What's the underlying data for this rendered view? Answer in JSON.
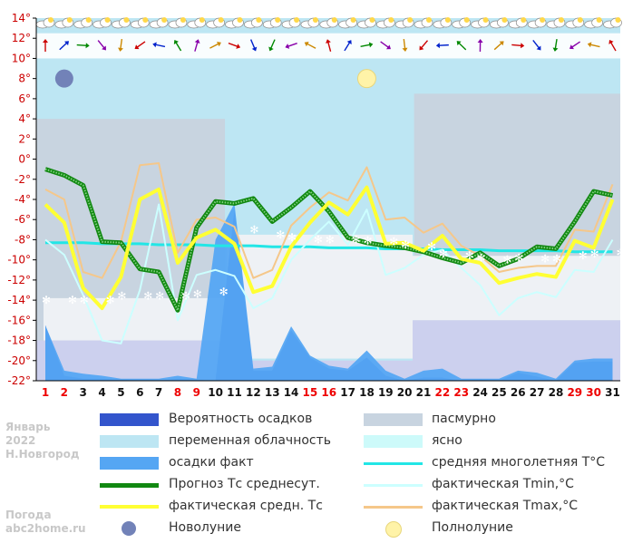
{
  "meta": {
    "month": "Январь",
    "year": "2022",
    "city": "Н.Новгород",
    "site_line1": "Погода",
    "site_line2": "abc2home.ru"
  },
  "colors": {
    "precip_prob": "#3355cc",
    "variable_cloud": "#bde6f3",
    "precip_actual": "#55a6f3",
    "forecast": "#118811",
    "actual_mean": "#ffff33",
    "overcast": "#c8d4e0",
    "clear": "#cdfafa",
    "normal": "#22e6e6",
    "tmin": "#ccffff",
    "tmax": "#f5c78a"
  },
  "legend": [
    {
      "key": "precip_prob",
      "label": "Вероятность осадков"
    },
    {
      "key": "overcast",
      "label": "пасмурно"
    },
    {
      "key": "variable_cloud",
      "label": "переменная облачность"
    },
    {
      "key": "clear",
      "label": "ясно"
    },
    {
      "key": "precip_actual",
      "label": "осадки факт"
    },
    {
      "key": "normal",
      "label": "средняя многолетняя Т°С"
    },
    {
      "key": "forecast",
      "label": "Прогноз Тс среднесут."
    },
    {
      "key": "tmin",
      "label": "фактическая Tmin,°C"
    },
    {
      "key": "actual_mean",
      "label": "фактическая средн. Тс"
    },
    {
      "key": "tmax",
      "label": "фактическая Tmax,°C"
    },
    {
      "key": "new_moon",
      "label": "Новолуние"
    },
    {
      "key": "full_moon",
      "label": "Полнолуние"
    }
  ],
  "chart_data": {
    "type": "line",
    "x": [
      1,
      2,
      3,
      4,
      5,
      6,
      7,
      8,
      9,
      10,
      11,
      12,
      13,
      14,
      15,
      16,
      17,
      18,
      19,
      20,
      21,
      22,
      23,
      24,
      25,
      26,
      27,
      28,
      29,
      30,
      31
    ],
    "x_tick_labels": [
      "1",
      "2",
      "3",
      "4",
      "5",
      "6",
      "7",
      "8",
      "9",
      "10",
      "11",
      "12",
      "13",
      "14",
      "15",
      "16",
      "17",
      "18",
      "19",
      "20",
      "21",
      "22",
      "23",
      "24",
      "25",
      "26",
      "27",
      "28",
      "29",
      "30",
      "31"
    ],
    "weekend_days": [
      1,
      2,
      8,
      9,
      15,
      16,
      22,
      23,
      29,
      30
    ],
    "y_tick_labels": [
      "14°",
      "12°",
      "10°",
      "8°",
      "6°",
      "4°",
      "2°",
      "0°",
      "-2°",
      "-4°",
      "-6°",
      "-8°",
      "-10°",
      "-12°",
      "-14°",
      "-16°",
      "-18°",
      "-20°",
      "-22°"
    ],
    "ylim": [
      -22,
      14
    ],
    "series": [
      {
        "name": "Прогноз Тс среднесут.",
        "values": [
          -1,
          -1.6,
          -2.6,
          -8.2,
          -8.3,
          -10.9,
          -11.2,
          -15,
          -6.8,
          -4.2,
          -4.4,
          -3.9,
          -6.2,
          -4.8,
          -3.2,
          -5.2,
          -7.8,
          -8.3,
          -8.6,
          -8.8,
          -9.2,
          -9.8,
          -10.3,
          -9.3,
          -10.6,
          -9.9,
          -8.7,
          -8.9,
          -6.2,
          -3.2,
          -3.6
        ]
      },
      {
        "name": "фактическая средн. Тс",
        "values": [
          -4.5,
          -6.3,
          -12.8,
          -14.8,
          -11.7,
          -4,
          -3,
          -10.3,
          -7.8,
          -7,
          -8.4,
          -13.2,
          -12.6,
          -8.7,
          -6.3,
          -4.3,
          -5.5,
          -2.8,
          -8.4,
          -8.3,
          -9.1,
          -7.6,
          -9.9,
          -10.3,
          -12.3,
          -11.8,
          -11.4,
          -11.7,
          -8.1,
          -8.8,
          -4
        ]
      },
      {
        "name": "фактическая Tmin,°C",
        "values": [
          -8,
          -9.5,
          -13.5,
          -18,
          -18.3,
          -13,
          -4.5,
          -16,
          -11.5,
          -11,
          -11.6,
          -14.8,
          -13.8,
          -10,
          -8,
          -6.2,
          -8.5,
          -5,
          -11.5,
          -10.8,
          -9.5,
          -9,
          -10.8,
          -12.5,
          -15.5,
          -13.8,
          -13.2,
          -13.7,
          -11,
          -11.2,
          -8
        ]
      },
      {
        "name": "фактическая Tmax,°C",
        "values": [
          -3,
          -4,
          -11.2,
          -11.8,
          -8.2,
          -0.6,
          -0.4,
          -9.3,
          -6,
          -5.8,
          -6.7,
          -11.8,
          -11,
          -6.6,
          -4.8,
          -3.3,
          -4.1,
          -0.8,
          -6,
          -5.8,
          -7.3,
          -6.4,
          -8.6,
          -9.6,
          -11.2,
          -10.8,
          -10.6,
          -10.6,
          -7,
          -7.2,
          -2.5
        ]
      },
      {
        "name": "средняя многолетняя Т°С",
        "values": [
          -8.3,
          -8.3,
          -8.3,
          -8.4,
          -8.4,
          -8.4,
          -8.5,
          -8.5,
          -8.5,
          -8.6,
          -8.6,
          -8.6,
          -8.7,
          -8.7,
          -8.7,
          -8.8,
          -8.8,
          -8.8,
          -8.9,
          -8.9,
          -8.9,
          -9,
          -9,
          -9,
          -9.1,
          -9.1,
          -9.1,
          -9.1,
          -9.2,
          -9.2,
          -9.2
        ]
      },
      {
        "name": "Вероятность осадков",
        "values": [
          -16.5,
          -21.5,
          -21.8,
          -21.8,
          -21.9,
          -22,
          -22,
          -21.8,
          -21.9,
          -22,
          -5,
          -21,
          -21,
          -17,
          -19.7,
          -20.8,
          -21,
          -19.7,
          -21.5,
          -22,
          -21.7,
          -21.7,
          -22,
          -21.9,
          -22,
          -21.2,
          -21.6,
          -22,
          -20.2,
          -20.1,
          -20.1
        ]
      },
      {
        "name": "осадки факт",
        "values": [
          -16.5,
          -21,
          -21.3,
          -21.5,
          -21.8,
          -21.8,
          -21.8,
          -21.5,
          -21.8,
          -8,
          -4.4,
          -20.8,
          -20.6,
          -16.6,
          -19.5,
          -20.5,
          -20.8,
          -19,
          -21,
          -21.8,
          -21,
          -20.8,
          -21.8,
          -21.8,
          -21.8,
          -21,
          -21.2,
          -21.8,
          -20,
          -19.8,
          -19.8
        ]
      }
    ],
    "cloud_bands": [
      {
        "type": "overcast",
        "from_day": 1,
        "to_day": 10.5,
        "top": 4
      },
      {
        "type": "variable_cloud",
        "from_day": 10.5,
        "to_day": 20.5,
        "top": 0
      },
      {
        "type": "overcast",
        "from_day": 20.5,
        "to_day": 31.5,
        "top": 6.5
      }
    ],
    "moon_phases": [
      {
        "type": "new_moon",
        "day": 2,
        "y": 8
      },
      {
        "type": "full_moon",
        "day": 18,
        "y": 8
      }
    ],
    "title": "",
    "xlabel": "",
    "ylabel": "",
    "grid": false,
    "legend_position": "bottom"
  }
}
